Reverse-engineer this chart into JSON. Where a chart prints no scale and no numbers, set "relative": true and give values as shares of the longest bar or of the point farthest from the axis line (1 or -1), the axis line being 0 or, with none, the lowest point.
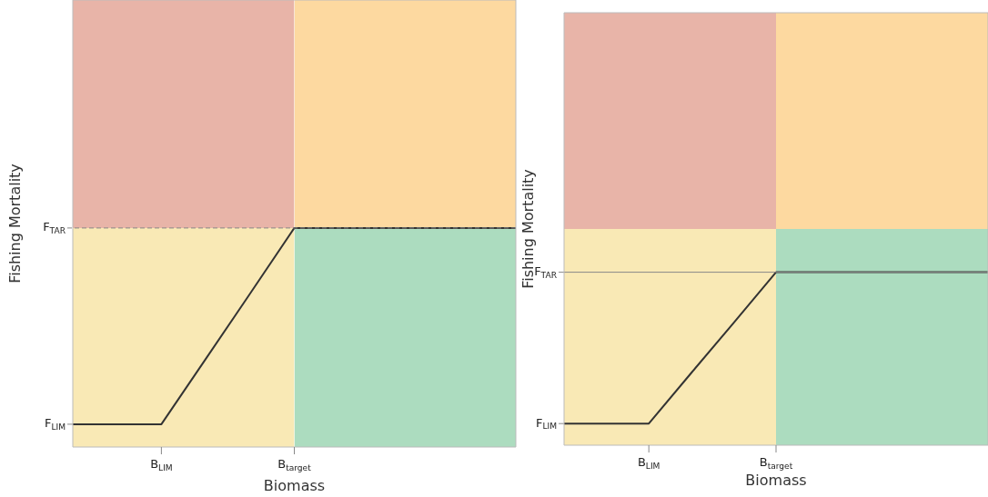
{
  "chart_data": [
    {
      "type": "line",
      "relative": true,
      "xlabel": "Biomass",
      "ylabel": "Fishing Mortality",
      "categories": [
        null,
        null,
        "B$_{LIM}$",
        null,
        null,
        "B$_{target}$",
        null,
        null,
        null,
        null,
        null
      ],
      "series": [
        {
          "type": "area",
          "color": "#f9e9b5",
          "values": [
            0.49,
            0.49,
            0.49,
            0.49,
            0.49,
            0.49,
            null,
            null,
            null,
            null,
            null
          ]
        },
        {
          "type": "area",
          "color": "#acdcbf",
          "values": [
            null,
            null,
            null,
            null,
            null,
            0.49,
            0.49,
            0.49,
            0.49,
            0.49,
            0.49
          ]
        },
        {
          "type": "area",
          "color": "#e8b4a8",
          "values": [
            1,
            1,
            1,
            1,
            1,
            1,
            null,
            null,
            null,
            null,
            null
          ]
        },
        {
          "type": "area",
          "color": "#fdd9a0",
          "values": [
            null,
            null,
            null,
            null,
            null,
            1,
            1,
            1,
            1,
            1,
            1
          ]
        },
        {
          "color": "#333333",
          "values": [
            0.051,
            0.051,
            0.051,
            0.197,
            0.343,
            0.49,
            0.49,
            0.49,
            0.49,
            0.49,
            0.49
          ]
        }
      ],
      "ref_lines": [
        {
          "axis": "y",
          "value": 0.49,
          "label": "F$_{TAR}$",
          "color": "#888888",
          "line_style": "dashed"
        }
      ],
      "annotations": [
        "F$_{LIM}$"
      ]
    },
    {
      "type": "line",
      "relative": true,
      "xlabel": "Biomass",
      "ylabel": "Fishing Mortality",
      "categories": [
        null,
        null,
        "B$_{LIM}$",
        null,
        null,
        "B$_{target}$",
        null,
        null,
        null,
        null,
        null
      ],
      "series": [
        {
          "type": "area",
          "color": "#f9e9b5",
          "values": [
            0.5,
            0.5,
            0.5,
            0.5,
            0.5,
            0.5,
            null,
            null,
            null,
            null,
            null
          ]
        },
        {
          "type": "area",
          "color": "#acdcbf",
          "values": [
            null,
            null,
            null,
            null,
            null,
            0.5,
            0.5,
            0.5,
            0.5,
            0.5,
            0.5
          ]
        },
        {
          "type": "area",
          "color": "#e8b4a8",
          "values": [
            1,
            1,
            1,
            1,
            1,
            1,
            null,
            null,
            null,
            null,
            null
          ]
        },
        {
          "type": "area",
          "color": "#fdd9a0",
          "values": [
            null,
            null,
            null,
            null,
            null,
            1,
            1,
            1,
            1,
            1,
            1
          ]
        },
        {
          "color": "#333333",
          "values": [
            0.05,
            0.05,
            0.05,
            0.167,
            0.283,
            0.4,
            0.4,
            0.4,
            0.4,
            0.4,
            0.4
          ]
        }
      ],
      "ref_lines": [
        {
          "axis": "y",
          "value": 0.4,
          "label": "F$_{TAR}$",
          "color": "#888888",
          "line_style": "solid"
        }
      ],
      "annotations": [
        "F$_{LIM}$"
      ]
    }
  ]
}
